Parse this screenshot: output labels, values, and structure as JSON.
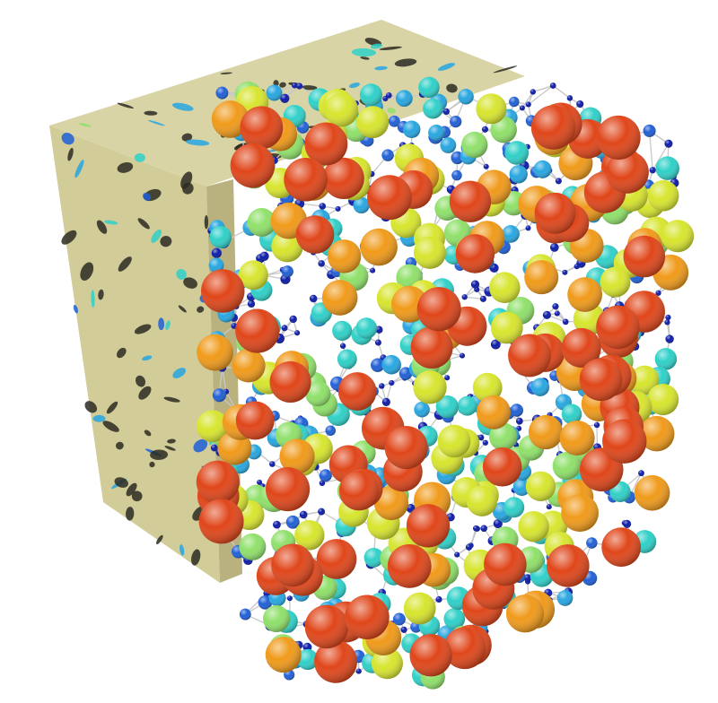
{
  "figure": {
    "subject": "pore-network-model",
    "colors": {
      "background": "#ffffff",
      "rock_matrix": "#d2cc98",
      "rock_matrix_shaded": "#b9b27f",
      "rock_matrix_dark": "#a39c6c",
      "pore_void": "#2b2a22",
      "throat": "#c8c8c8",
      "pore_scale": [
        "#0a1aa8",
        "#1f5fd6",
        "#27a6e0",
        "#2fd0c8",
        "#8fe06a",
        "#d7e52e",
        "#f09a1a",
        "#e0461a"
      ]
    }
  }
}
